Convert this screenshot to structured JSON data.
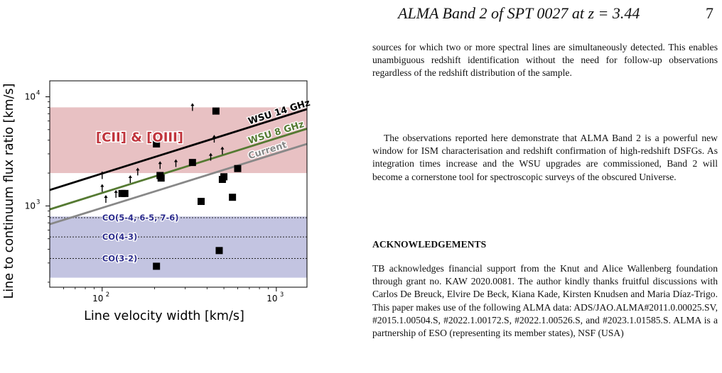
{
  "header": {
    "title": "ALMA Band 2 of SPT 0027 at z = 3.44",
    "page_number": "7"
  },
  "body": {
    "paragraph_1": "sources for which two or more spectral lines are simultaneously detected. This enables unambiguous redshift identification without the need for follow-up observations regardless of the redshift distribution of the sample.",
    "paragraph_2": "The observations reported here demonstrate that ALMA Band 2 is a powerful new window for ISM characterisation and redshift confirmation of high-redshift DSFGs. As integration times increase and the WSU upgrades are commissioned, Band 2 will become a cornerstone tool for spectroscopic surveys of the obscured Universe.",
    "ack_heading": "ACKNOWLEDGEMENTS",
    "paragraph_3": "TB acknowledges financial support from the Knut and Alice Wallenberg foundation through grant no. KAW 2020.0081. The author kindly thanks fruitful discussions with Carlos De Breuck, Elvire De Beck, Kiana Kade, Kirsten Knudsen and Maria Díaz-Trigo. This paper makes use of the following ALMA data: ADS/JAO.ALMA#2011.0.00025.SV, #2015.1.00504.S, #2022.1.00172.S, #2022.1.00526.S, and #2023.1.01585.S. ALMA is a partnership of ESO (representing its member states), NSF (USA)"
  },
  "chart_data": {
    "type": "scatter",
    "xlabel": "Line velocity width [km/s]",
    "ylabel": "Line to continuum flux ratio [km/s]",
    "xscale": "log",
    "yscale": "log",
    "xlim": [
      50,
      1500
    ],
    "ylim": [
      180,
      14000
    ],
    "x_tick_labels": [
      {
        "value": 100,
        "label": "10^2"
      },
      {
        "value": 1000,
        "label": "10^3"
      }
    ],
    "y_tick_labels": [
      {
        "value": 1000,
        "label": "10^3"
      },
      {
        "value": 10000,
        "label": "10^4"
      }
    ],
    "colors": {
      "cii_oiii_band": "#e4b6b8",
      "co_band": "#b9badc",
      "wsu14": "#000000",
      "wsu8": "#557a32",
      "current": "#888888",
      "co_label": "#2a2a8c",
      "cii_label": "#c0343c"
    },
    "bands": [
      {
        "label": "[CII] & [OIII]",
        "ymin": 2000,
        "ymax": 8000
      },
      {
        "label": "CO",
        "ymin": 220,
        "ymax": 800
      }
    ],
    "co_lines": [
      {
        "label": "CO(5-4, 6-5, 7-6)",
        "y": 780
      },
      {
        "label": "CO(4-3)",
        "y": 520
      },
      {
        "label": "CO(3-2)",
        "y": 330
      }
    ],
    "sensitivity_lines": [
      {
        "name": "WSU 14 GHz",
        "x": [
          50,
          1500
        ],
        "y": [
          1400,
          7700
        ]
      },
      {
        "name": "WSU 8 GHz",
        "x": [
          50,
          1500
        ],
        "y": [
          930,
          5100
        ]
      },
      {
        "name": "Current",
        "x": [
          50,
          1500
        ],
        "y": [
          680,
          3700
        ]
      }
    ],
    "detections": {
      "x": [
        130,
        135,
        205,
        215,
        218,
        330,
        370,
        450,
        490,
        500,
        560,
        600,
        470,
        205
      ],
      "y": [
        1300,
        1300,
        3700,
        1900,
        1800,
        2500,
        1100,
        7400,
        1750,
        1850,
        1200,
        2200,
        390,
        280
      ]
    },
    "lower_limits": {
      "x": [
        100,
        100,
        105,
        120,
        145,
        160,
        215,
        265,
        330,
        420,
        440,
        490
      ],
      "y": [
        1900,
        1450,
        1150,
        1280,
        1750,
        2050,
        2350,
        2450,
        8000,
        2800,
        4100,
        3200
      ]
    }
  }
}
